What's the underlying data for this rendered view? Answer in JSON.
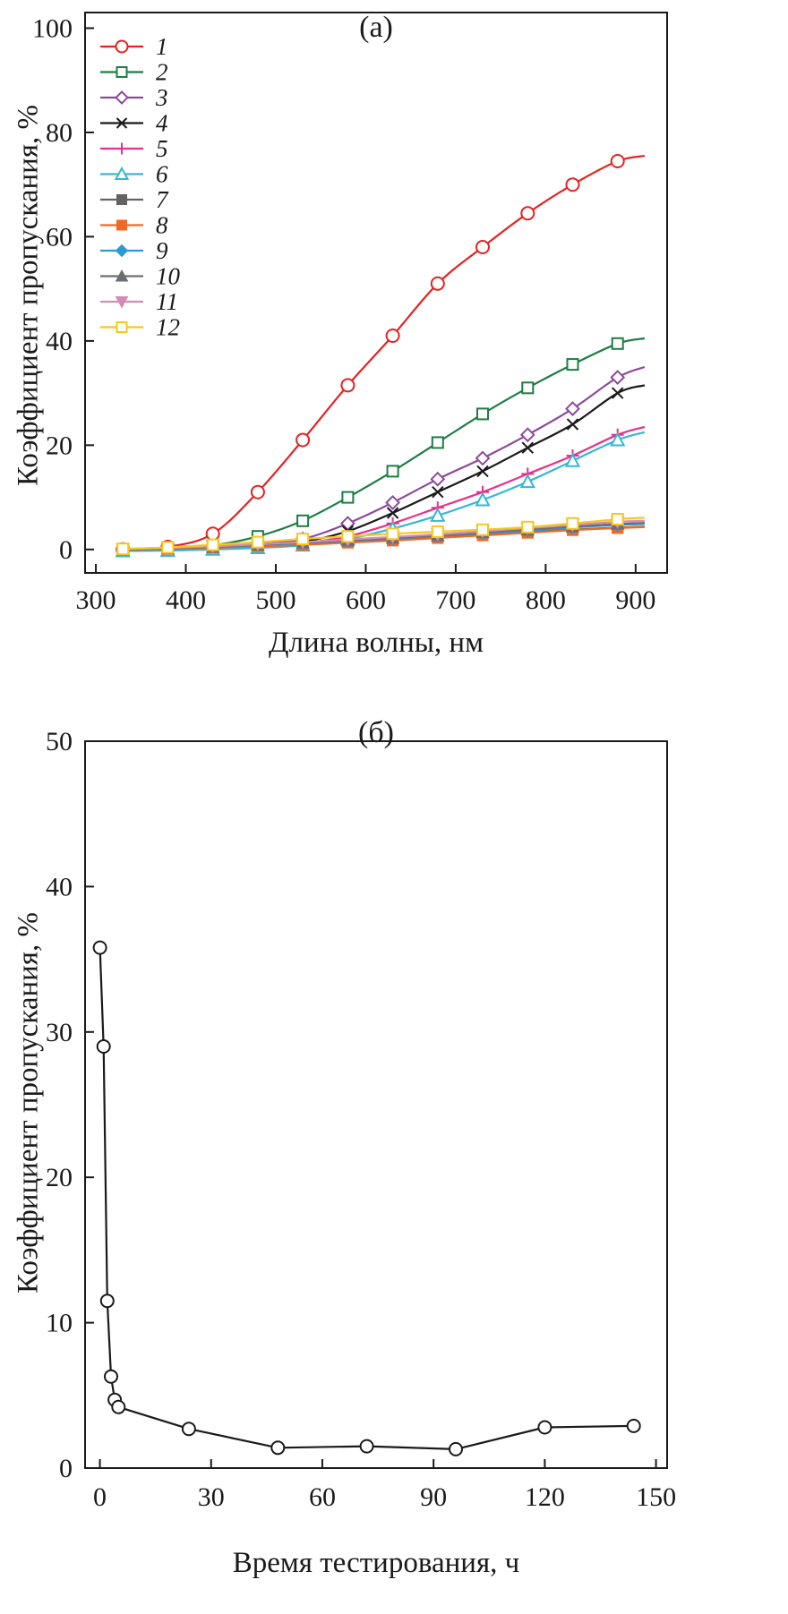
{
  "panels": {
    "a": {
      "label": "(а)",
      "xlabel": "Длина волны, нм",
      "ylabel": "Коэффициент пропускания, %"
    },
    "b": {
      "label": "(б)",
      "xlabel": "Время тестирования, ч",
      "ylabel": "Коэффициент пропускания, %"
    }
  },
  "style": {
    "axis_color": "#1a1a1a",
    "background": "#ffffff"
  },
  "chart_data": [
    {
      "id": "a",
      "type": "line",
      "title": "(а)",
      "xlabel": "Длина волны, нм",
      "ylabel": "Коэффициент пропускания, %",
      "xlim": [
        288,
        935
      ],
      "ylim": [
        -4.5,
        103
      ],
      "xticks": [
        300,
        400,
        500,
        600,
        700,
        800,
        900
      ],
      "yticks": [
        0,
        20,
        40,
        60,
        80,
        100
      ],
      "grid": false,
      "legend_position": "top-left",
      "x": [
        330,
        380,
        430,
        480,
        530,
        580,
        630,
        680,
        730,
        780,
        830,
        880,
        910
      ],
      "series": [
        {
          "name": "1",
          "color": "#e32322",
          "marker": "circle-open",
          "values": [
            0,
            0.5,
            3,
            11,
            21,
            31.5,
            41,
            51,
            58,
            64.5,
            70,
            74.5,
            75.5
          ]
        },
        {
          "name": "2",
          "color": "#1e7d45",
          "marker": "square-open",
          "values": [
            0,
            0.3,
            0.8,
            2.5,
            5.5,
            10,
            15,
            20.5,
            26,
            31,
            35.5,
            39.5,
            40.5
          ]
        },
        {
          "name": "3",
          "color": "#8d4a9c",
          "marker": "diamond-open",
          "values": [
            0,
            0.2,
            0.5,
            1,
            2,
            5,
            9,
            13.5,
            17.5,
            22,
            27,
            33,
            35
          ]
        },
        {
          "name": "4",
          "color": "#1a1a1a",
          "marker": "x-cross",
          "values": [
            0,
            0.1,
            0.3,
            0.8,
            1.5,
            3.5,
            7,
            11,
            15,
            19.5,
            24,
            30,
            31.5
          ]
        },
        {
          "name": "5",
          "color": "#e8308a",
          "marker": "plus-cross",
          "values": [
            0,
            0.1,
            0.3,
            0.7,
            1.2,
            2.5,
            5,
            8,
            11,
            14.5,
            18,
            22,
            23.5
          ]
        },
        {
          "name": "6",
          "color": "#36b7d4",
          "marker": "triangle-open",
          "values": [
            -0.3,
            -0.2,
            0,
            0.3,
            0.8,
            2,
            4,
            6.5,
            9.5,
            13,
            17,
            21,
            22.5
          ]
        },
        {
          "name": "7",
          "color": "#636363",
          "marker": "square-filled",
          "values": [
            0,
            0.2,
            0.4,
            0.7,
            1,
            1.4,
            1.8,
            2.3,
            2.8,
            3.3,
            3.8,
            4.2,
            4.4
          ]
        },
        {
          "name": "8",
          "color": "#f26824",
          "marker": "square-filled",
          "values": [
            -0.1,
            0.1,
            0.3,
            0.6,
            0.9,
            1.3,
            1.7,
            2.2,
            2.7,
            3.2,
            3.7,
            4.1,
            4.3
          ]
        },
        {
          "name": "9",
          "color": "#2d9bd3",
          "marker": "diamond-filled",
          "values": [
            0,
            0.2,
            0.5,
            0.8,
            1.2,
            1.6,
            2.1,
            2.6,
            3.1,
            3.6,
            4.2,
            4.7,
            4.9
          ]
        },
        {
          "name": "10",
          "color": "#6d6e71",
          "marker": "triangle-filled",
          "values": [
            0,
            0.2,
            0.5,
            0.9,
            1.3,
            1.7,
            2.2,
            2.7,
            3.3,
            3.8,
            4.4,
            4.9,
            5.1
          ]
        },
        {
          "name": "11",
          "color": "#d68ab4",
          "marker": "triangle-down-filled",
          "values": [
            0.1,
            0.3,
            0.6,
            1,
            1.4,
            1.9,
            2.4,
            2.9,
            3.5,
            4.1,
            4.7,
            5.3,
            5.5
          ]
        },
        {
          "name": "12",
          "color": "#f5c81d",
          "marker": "square-open",
          "values": [
            0.1,
            0.4,
            0.9,
            1.4,
            2,
            2.5,
            3,
            3.4,
            3.8,
            4.3,
            5,
            5.8,
            6.1
          ]
        }
      ]
    },
    {
      "id": "b",
      "type": "line",
      "title": "(б)",
      "xlabel": "Время тестирования, ч",
      "ylabel": "Коэффициент пропускания, %",
      "xlim": [
        -4,
        153
      ],
      "ylim": [
        0,
        50
      ],
      "xticks": [
        0,
        30,
        60,
        90,
        120,
        150
      ],
      "yticks": [
        0,
        10,
        20,
        30,
        40,
        50
      ],
      "grid": false,
      "legend_position": null,
      "series": [
        {
          "name": "",
          "color": "#1a1a1a",
          "marker": "circle-open",
          "points": [
            [
              0,
              35.8
            ],
            [
              1,
              29
            ],
            [
              2,
              11.5
            ],
            [
              3,
              6.3
            ],
            [
              4,
              4.7
            ],
            [
              5,
              4.2
            ],
            [
              24,
              2.7
            ],
            [
              48,
              1.4
            ],
            [
              72,
              1.5
            ],
            [
              96,
              1.3
            ],
            [
              120,
              2.8
            ],
            [
              144,
              2.9
            ]
          ]
        }
      ]
    }
  ]
}
